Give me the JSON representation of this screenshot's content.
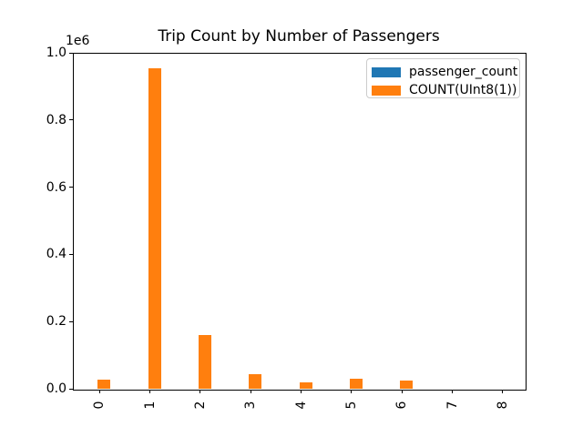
{
  "figure": {
    "title": "Trip Count by Number of Passengers",
    "y_offset_label": "1e6",
    "background_color": "#ffffff",
    "spine_color": "#000000"
  },
  "legend": {
    "position": "upper right",
    "border_color": "#cccccc",
    "items": [
      {
        "label": "passenger_count",
        "color": "#1f77b4"
      },
      {
        "label": "COUNT(UInt8(1))",
        "color": "#ff7f0e"
      }
    ]
  },
  "chart_data": {
    "type": "bar",
    "title": "Trip Count by Number of Passengers",
    "categories": [
      "0",
      "1",
      "2",
      "3",
      "4",
      "5",
      "6",
      "7",
      "8"
    ],
    "series": [
      {
        "name": "passenger_count",
        "color": "#1f77b4",
        "values": [
          0,
          1,
          2,
          3,
          4,
          5,
          6,
          7,
          8
        ]
      },
      {
        "name": "COUNT(UInt8(1))",
        "color": "#ff7f0e",
        "values": [
          26000,
          954000,
          160000,
          44000,
          18000,
          30000,
          25000,
          0,
          0
        ]
      }
    ],
    "xlabel": "",
    "ylabel": "",
    "ylim": [
      0,
      1000000
    ],
    "y_ticks": [
      0.0,
      0.2,
      0.4,
      0.6,
      0.8,
      1.0
    ],
    "y_scale_factor": "1e6",
    "x_tick_rotation": 90,
    "legend_position": "upper right",
    "grid": false
  }
}
